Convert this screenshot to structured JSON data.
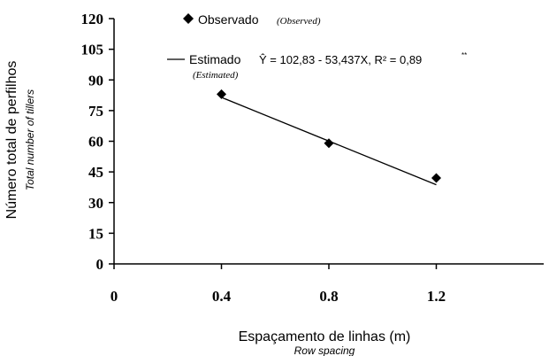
{
  "chart_data": {
    "type": "scatter",
    "x_ticks": [
      "0",
      "0.4",
      "0.8",
      "1.2"
    ],
    "y_ticks": [
      "0",
      "15",
      "30",
      "45",
      "60",
      "75",
      "90",
      "105",
      "120"
    ],
    "xlim": [
      0,
      1.6
    ],
    "ylim": [
      0,
      120
    ],
    "xlabel": "Espaçamento de linhas (m)",
    "xlabel_en": "Row spacing",
    "ylabel": "Número total de perfilhos",
    "ylabel_en": "Total number of tillers",
    "grid": false,
    "legend_position": "top-left",
    "series": [
      {
        "name": "Observado",
        "name_en": "(Observed)",
        "marker": "diamond",
        "points": [
          {
            "x": 0.4,
            "y": 83
          },
          {
            "x": 0.8,
            "y": 59
          },
          {
            "x": 1.2,
            "y": 42
          }
        ]
      },
      {
        "name": "Estimado",
        "name_en": "(Estimated)",
        "type": "line",
        "equation": "Ŷ = 102,83 - 53,437X, R² = 0,89",
        "significance": "**",
        "points": [
          {
            "x": 0.4,
            "y": 81.46
          },
          {
            "x": 1.2,
            "y": 38.71
          }
        ]
      }
    ]
  }
}
